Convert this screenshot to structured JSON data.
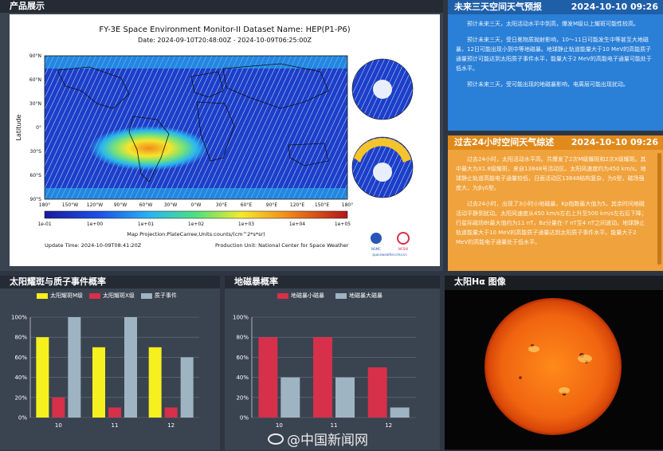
{
  "product": {
    "title": "产品展示",
    "figure_title": "FY-3E Space Environment Monitor-II  Dataset Name: HEP(P1-P6)",
    "figure_date": "Date: 2024-09-10T20:48:00Z - 2024-10-09T06:25:00Z",
    "lat_label": "Latitude",
    "lat_ticks": [
      "90°N",
      "60°N",
      "30°N",
      "0°",
      "30°S",
      "60°S",
      "90°S"
    ],
    "lon_ticks": [
      "180°",
      "150°W",
      "120°W",
      "90°W",
      "60°W",
      "30°W",
      "0°W",
      "30°E",
      "60°E",
      "90°E",
      "120°E",
      "150°E",
      "180°"
    ],
    "colorbar_ticks": [
      "1e-01",
      "1e+00",
      "1e+01",
      "1e+02",
      "1e+03",
      "1e+04",
      "1e+05"
    ],
    "projection": "Map Projection:PlateCarree;Units:counts/(cm^2*s*sr)",
    "update_time": "Update Time: 2024-10-09T08:41:20Z",
    "production_unit": "Production Unit: National Center for Space Weather",
    "logo1": "NSMC",
    "logo2": "NCSW",
    "website": "spaceweather.cma.cn"
  },
  "forecast": {
    "title": "未来三天空间天气预报",
    "date": "2024-10-10 09:26",
    "paragraphs": [
      "预计未来三天，太阳活动水平中到高，爆发M级以上耀斑可能性较高。",
      "预计未来三天，受日冕物质抛射影响，10～11日可能发生中等甚至大地磁暴，12日可能出现小到中等地磁暴。地球静止轨道能量大于10 MeV的高能质子通量预计可能达到太阳质子事件水平，能量大于2 MeV的高能电子通量可能处于低水平。",
      "预计未来三天，受可能出现的地磁暴影响，电离层可能出现扰动。"
    ]
  },
  "review": {
    "title": "过去24小时空间天气综述",
    "date": "2024-10-10 09:26",
    "paragraphs": [
      "过去24小时，太阳活动水平高。共爆发了2次M级耀斑和2次X级耀斑。其中最大为X1.8级耀斑，来自13848号活动区。太阳风速度约为450 km/s。地球静止轨道高能电子通量较低，日面活动区13848结构复杂，为δ型，磁场强度大，为βγδ型。",
      "过去24小时，出现了3小时小地磁暴，Kp指数最大值为5。其余时间地磁活动平静到扰动。太阳风速度从450 km/s左右上升至500 km/s左右后下降；行星际磁场Bt最大值约为11 nT，Bz分量在-7 nT至4 nT之间波动。地球静止轨道能量大于10 MeV的高能质子通量达到太阳质子事件水平。能量大于2 MeV的高能电子通量处于低水平。"
    ]
  },
  "flare_chart": {
    "title": "太阳耀斑与质子事件概率",
    "chart_data": {
      "type": "bar",
      "categories": [
        "10",
        "11",
        "12"
      ],
      "series": [
        {
          "name": "太阳耀斑M级",
          "values": [
            80,
            70,
            70
          ],
          "color": "#f5f01e"
        },
        {
          "name": "太阳耀斑X级",
          "values": [
            20,
            10,
            10
          ],
          "color": "#d6304a"
        },
        {
          "name": "质子事件",
          "values": [
            100,
            100,
            60
          ],
          "color": "#9fb4c3"
        }
      ],
      "yticks": [
        "0%",
        "20%",
        "40%",
        "60%",
        "80%",
        "100%"
      ],
      "ylim": [
        0,
        100
      ]
    }
  },
  "storm_chart": {
    "title": "地磁暴概率",
    "chart_data": {
      "type": "bar",
      "categories": [
        "10",
        "11",
        "12"
      ],
      "series": [
        {
          "name": "地磁暴小磁暴",
          "values": [
            80,
            80,
            50
          ],
          "color": "#d6304a"
        },
        {
          "name": "地磁暴大磁暴",
          "values": [
            40,
            40,
            10
          ],
          "color": "#9fb4c3"
        }
      ],
      "yticks": [
        "0%",
        "20%",
        "40%",
        "60%",
        "80%",
        "100%"
      ],
      "ylim": [
        0,
        100
      ]
    }
  },
  "halpha": {
    "title": "太阳Hα 图像"
  },
  "watermark": "@中国新闻网"
}
